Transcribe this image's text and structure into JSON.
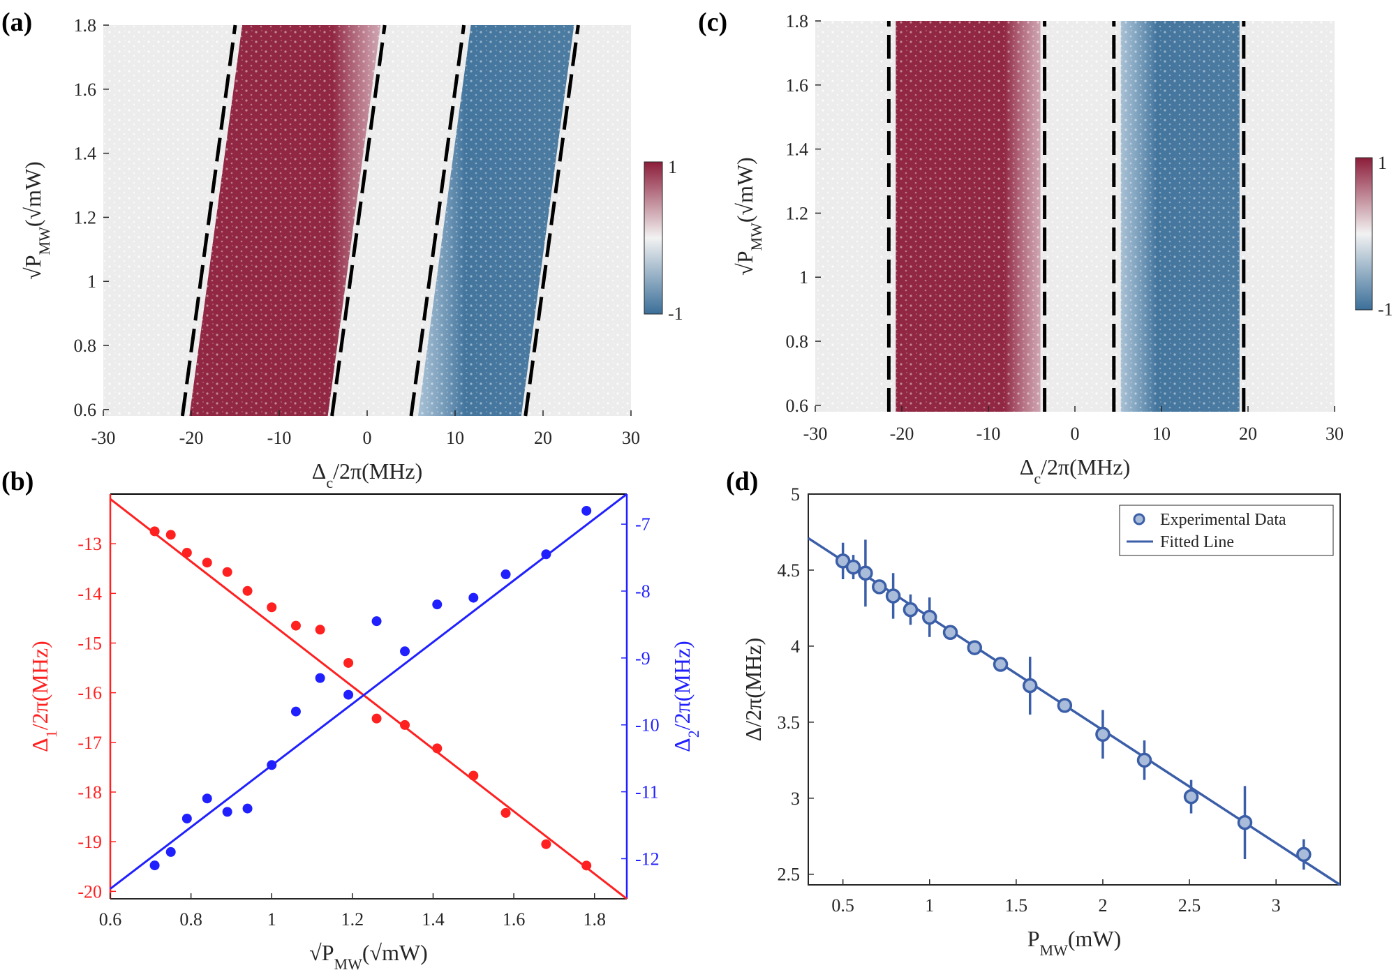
{
  "chart_data": [
    {
      "panel": "(a)",
      "type": "heatmap",
      "xlabel": "Δc/2π(MHz)",
      "ylabel": "√PMW(√mW)",
      "xlim": [
        -30,
        30
      ],
      "ylim": [
        0.58,
        1.8
      ],
      "xticks": [
        -30,
        -20,
        -10,
        0,
        10,
        20,
        30
      ],
      "yticks": [
        0.6,
        0.8,
        1.0,
        1.2,
        1.4,
        1.6,
        1.8
      ],
      "xtick_labels": [
        "-30",
        "-20",
        "-10",
        "0",
        "10",
        "20",
        "30"
      ],
      "ytick_labels": [
        "0.6",
        "0.8",
        "1",
        "1.2",
        "1.4",
        "1.6",
        "1.8"
      ],
      "colorbar": {
        "min": -1,
        "max": 1,
        "min_label": "-1",
        "max_label": "1",
        "colors": [
          "#3b6f99",
          "#f2f2f2",
          "#8c1d3a"
        ]
      },
      "bands": [
        {
          "value": 1,
          "left_edge": [
            [
              -21,
              0.58
            ],
            [
              -15,
              1.8
            ]
          ],
          "right_edge": [
            [
              -4,
              0.58
            ],
            [
              2,
              1.8
            ]
          ]
        },
        {
          "value": -1,
          "left_edge": [
            [
              5,
              0.58
            ],
            [
              11,
              1.8
            ]
          ],
          "right_edge": [
            [
              18,
              0.58
            ],
            [
              24,
              1.8
            ]
          ]
        }
      ],
      "dashed_lines": [
        [
          [
            -21,
            0.58
          ],
          [
            -15,
            1.8
          ]
        ],
        [
          [
            -4,
            0.58
          ],
          [
            2,
            1.8
          ]
        ],
        [
          [
            5,
            0.58
          ],
          [
            11,
            1.8
          ]
        ],
        [
          [
            18,
            0.58
          ],
          [
            24,
            1.8
          ]
        ]
      ]
    },
    {
      "panel": "(b)",
      "type": "scatter",
      "xlabel": "√PMW(√mW)",
      "ylabel_left": "Δ1/2π(MHz)",
      "ylabel_right": "Δ2/2π(MHz)",
      "xlim": [
        0.6,
        1.88
      ],
      "ylim_left": [
        -20.15,
        -12
      ],
      "ylim_right": [
        -12.6,
        -6.55
      ],
      "xticks": [
        0.6,
        0.8,
        1.0,
        1.2,
        1.4,
        1.6,
        1.8
      ],
      "xtick_labels": [
        "0.6",
        "0.8",
        "1",
        "1.2",
        "1.4",
        "1.6",
        "1.8"
      ],
      "yticks_left": [
        -20,
        -19,
        -18,
        -17,
        -16,
        -15,
        -14,
        -13
      ],
      "yticks_right": [
        -12,
        -11,
        -10,
        -9,
        -8,
        -7
      ],
      "series": [
        {
          "name": "Δ1",
          "color": "#ff2020",
          "axis": "left",
          "x": [
            0.71,
            0.75,
            0.79,
            0.84,
            0.89,
            0.94,
            1.0,
            1.06,
            1.12,
            1.19,
            1.26,
            1.33,
            1.41,
            1.5,
            1.58,
            1.68,
            1.78
          ],
          "y": [
            -12.75,
            -12.82,
            -13.18,
            -13.38,
            -13.57,
            -13.95,
            -14.28,
            -14.65,
            -14.73,
            -15.4,
            -16.52,
            -16.65,
            -17.12,
            -17.67,
            -18.42,
            -19.05,
            -19.48
          ],
          "fit": [
            [
              0.6,
              -12.1
            ],
            [
              1.88,
              -20.15
            ]
          ]
        },
        {
          "name": "Δ2",
          "color": "#2020ff",
          "axis": "right",
          "x": [
            0.71,
            0.75,
            0.79,
            0.84,
            0.89,
            0.94,
            1.0,
            1.06,
            1.12,
            1.19,
            1.26,
            1.33,
            1.41,
            1.5,
            1.58,
            1.68,
            1.78
          ],
          "y": [
            -12.1,
            -11.9,
            -11.4,
            -11.1,
            -11.3,
            -11.25,
            -10.6,
            -9.8,
            -9.3,
            -9.55,
            -8.45,
            -8.9,
            -8.2,
            -8.1,
            -7.75,
            -7.45,
            -6.8
          ],
          "fit": [
            [
              0.6,
              -12.45
            ],
            [
              1.88,
              -6.55
            ]
          ]
        }
      ]
    },
    {
      "panel": "(c)",
      "type": "heatmap",
      "xlabel": "Δc/2π(MHz)",
      "ylabel": "√PMW(√mW)",
      "xlim": [
        -30,
        30
      ],
      "ylim": [
        0.58,
        1.8
      ],
      "xticks": [
        -30,
        -20,
        -10,
        0,
        10,
        20,
        30
      ],
      "yticks": [
        0.6,
        0.8,
        1.0,
        1.2,
        1.4,
        1.6,
        1.8
      ],
      "xtick_labels": [
        "-30",
        "-20",
        "-10",
        "0",
        "10",
        "20",
        "30"
      ],
      "ytick_labels": [
        "0.6",
        "0.8",
        "1",
        "1.2",
        "1.4",
        "1.6",
        "1.8"
      ],
      "colorbar": {
        "min": -1,
        "max": 1,
        "min_label": "-1",
        "max_label": "1",
        "colors": [
          "#3b6f99",
          "#f2f2f2",
          "#8c1d3a"
        ]
      },
      "bands": [
        {
          "value": 1,
          "left_edge": [
            [
              -21.5,
              0.58
            ],
            [
              -21.5,
              1.8
            ]
          ],
          "right_edge": [
            [
              -3.5,
              0.58
            ],
            [
              -3.5,
              1.8
            ]
          ]
        },
        {
          "value": -1,
          "left_edge": [
            [
              4.5,
              0.58
            ],
            [
              4.5,
              1.8
            ]
          ],
          "right_edge": [
            [
              19.5,
              0.58
            ],
            [
              19.5,
              1.8
            ]
          ]
        }
      ],
      "dashed_lines": [
        [
          [
            -21.5,
            0.58
          ],
          [
            -21.5,
            1.8
          ]
        ],
        [
          [
            -3.5,
            0.58
          ],
          [
            -3.5,
            1.8
          ]
        ],
        [
          [
            4.5,
            0.58
          ],
          [
            4.5,
            1.8
          ]
        ],
        [
          [
            19.5,
            0.58
          ],
          [
            19.5,
            1.8
          ]
        ]
      ]
    },
    {
      "panel": "(d)",
      "type": "scatter",
      "xlabel": "PMW(mW)",
      "ylabel": "Δ/2π(MHz)",
      "xlim": [
        0.3,
        3.37
      ],
      "ylim": [
        2.43,
        5.0
      ],
      "xticks": [
        0.5,
        1.0,
        1.5,
        2.0,
        2.5,
        3.0
      ],
      "xtick_labels": [
        "0.5",
        "1",
        "1.5",
        "2",
        "2.5",
        "3"
      ],
      "yticks": [
        2.5,
        3.0,
        3.5,
        4.0,
        4.5,
        5.0
      ],
      "ytick_labels": [
        "2.5",
        "3",
        "3.5",
        "4",
        "4.5",
        "5"
      ],
      "legend": {
        "position": "top-right",
        "entries": [
          "Experimental Data",
          "Fitted Line"
        ]
      },
      "series": [
        {
          "name": "Experimental Data",
          "color": "#3b5ea8",
          "x": [
            0.5,
            0.56,
            0.63,
            0.71,
            0.79,
            0.89,
            1.0,
            1.12,
            1.26,
            1.41,
            1.58,
            1.78,
            2.0,
            2.24,
            2.51,
            2.82,
            3.16
          ],
          "y": [
            4.56,
            4.52,
            4.48,
            4.39,
            4.33,
            4.24,
            4.19,
            4.09,
            3.99,
            3.88,
            3.74,
            3.61,
            3.42,
            3.25,
            3.01,
            2.84,
            2.63
          ],
          "err": [
            0.12,
            0.08,
            0.22,
            0.04,
            0.15,
            0.1,
            0.13,
            0.04,
            0.04,
            0.04,
            0.19,
            0.04,
            0.16,
            0.13,
            0.11,
            0.24,
            0.1
          ]
        },
        {
          "name": "Fitted Line",
          "color": "#3b5ea8",
          "fit": [
            [
              0.3,
              4.71
            ],
            [
              3.37,
              2.43
            ]
          ]
        }
      ]
    }
  ]
}
